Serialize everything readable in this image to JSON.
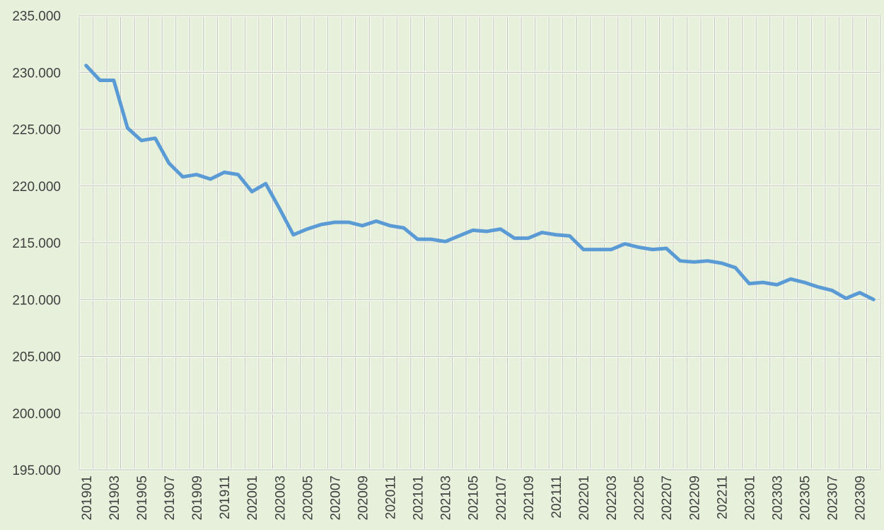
{
  "chart_data": {
    "type": "line",
    "categories": [
      "201901",
      null,
      "201903",
      null,
      "201905",
      null,
      "201907",
      null,
      "201909",
      null,
      "201911",
      null,
      "202001",
      null,
      "202003",
      null,
      "202005",
      null,
      "202007",
      null,
      "202009",
      null,
      "202011",
      null,
      "202101",
      null,
      "202103",
      null,
      "202105",
      null,
      "202107",
      null,
      "202109",
      null,
      "202111",
      null,
      "202201",
      null,
      "202203",
      null,
      "202205",
      null,
      "202207",
      null,
      "202209",
      null,
      "202211",
      null,
      "202301",
      null,
      "202303",
      null,
      "202305",
      null,
      "202307",
      null,
      "202309",
      null
    ],
    "series": [
      {
        "color": "#5b9bd5",
        "values": [
          230.6,
          229.3,
          229.3,
          225.1,
          224.0,
          224.2,
          222.0,
          220.8,
          221.0,
          220.6,
          221.2,
          221.0,
          219.5,
          220.2,
          218.0,
          215.7,
          216.2,
          216.6,
          216.8,
          216.8,
          216.5,
          216.9,
          216.5,
          216.3,
          215.3,
          215.3,
          215.1,
          215.6,
          216.1,
          216.0,
          216.2,
          215.4,
          215.4,
          215.9,
          215.7,
          215.6,
          214.4,
          214.4,
          214.4,
          214.9,
          214.6,
          214.4,
          214.5,
          213.4,
          213.3,
          213.4,
          213.2,
          212.8,
          211.4,
          211.5,
          211.3,
          211.8,
          211.5,
          211.1,
          210.8,
          210.1,
          210.6,
          210.0
        ]
      }
    ],
    "ylim": [
      195,
      235
    ],
    "yticks": [
      {
        "value": 195,
        "label": "195.000"
      },
      {
        "value": 200,
        "label": "200.000"
      },
      {
        "value": 205,
        "label": "205.000"
      },
      {
        "value": 210,
        "label": "210.000"
      },
      {
        "value": 215,
        "label": "215.000"
      },
      {
        "value": 220,
        "label": "220.000"
      },
      {
        "value": 225,
        "label": "225.000"
      },
      {
        "value": 230,
        "label": "230.000"
      },
      {
        "value": 235,
        "label": "235.000"
      }
    ],
    "grid": true
  }
}
